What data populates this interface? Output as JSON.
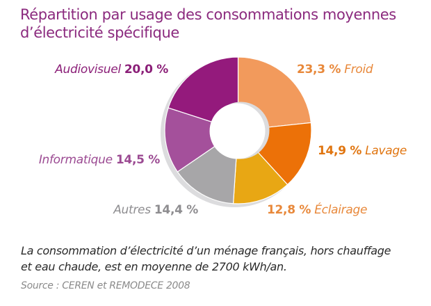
{
  "chart_data": {
    "type": "pie",
    "variant": "donut",
    "title": "Répartition par usage des consommations moyennes d’électricité spécifique",
    "title_lines": [
      "Répartition par usage des consommations moyennes",
      "d’électricité spécifique"
    ],
    "start": "top",
    "direction": "clockwise",
    "slices": [
      {
        "label": "Froid",
        "value": 23.3,
        "display": "23,3 %",
        "color": "#f29a5c",
        "text_color": "#e8883a",
        "label_order": "value-first"
      },
      {
        "label": "Lavage",
        "value": 14.9,
        "display": "14,9 %",
        "color": "#ec7108",
        "text_color": "#e07510",
        "label_order": "value-first"
      },
      {
        "label": "Éclairage",
        "value": 12.8,
        "display": "12,8 %",
        "color": "#e8a714",
        "text_color": "#e8883a",
        "label_order": "value-first"
      },
      {
        "label": "Autres",
        "value": 14.4,
        "display": "14,4 %",
        "color": "#a7a6a8",
        "text_color": "#8e8d90",
        "label_order": "name-first"
      },
      {
        "label": "Informatique",
        "value": 14.5,
        "display": "14,5 %",
        "color": "#a4509b",
        "text_color": "#9b4a92",
        "label_order": "name-first"
      },
      {
        "label": "Audiovisuel",
        "value": 20.0,
        "display": "20,0 %",
        "color": "#941a7c",
        "text_color": "#8b1f78",
        "label_order": "name-first"
      }
    ],
    "legend": "none",
    "unit": "%"
  },
  "caption": {
    "lines": [
      "La consommation d’électricité d’un ménage français, hors chauffage",
      "et eau chaude, est en moyenne de 2700 kWh/an."
    ]
  },
  "source": "Source : CEREN et REMODECE 2008",
  "colors": {
    "title": "#8b2a7e",
    "shadow": "#dcdcde"
  }
}
